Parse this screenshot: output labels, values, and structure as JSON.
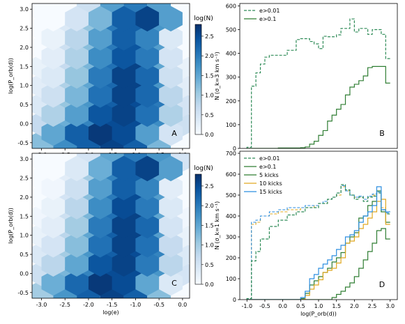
{
  "colors": {
    "cmap": [
      "#f7fbff",
      "#deebf7",
      "#c6dbef",
      "#9ecae1",
      "#6baed6",
      "#4292c6",
      "#2171b5",
      "#08519c",
      "#08306b"
    ],
    "dashed_green": "#2e8b57",
    "solid_green": "#2e7d32",
    "kicks5": "#2e7d32",
    "kicks10": "#e0a820",
    "kicks15": "#2b8ee0"
  },
  "chart_data": [
    {
      "panel": "A",
      "type": "heatmap",
      "xlabel": "",
      "ylabel": "log(P_orb(d))",
      "xlim": [
        -3.2,
        0.15
      ],
      "ylim": [
        -0.65,
        3.15
      ],
      "x_ticks": [
        "-3.0",
        "-2.5",
        "-2.0",
        "-1.5",
        "-1.0",
        "-0.5",
        "0.0"
      ],
      "y_ticks": [
        "-0.5",
        "0.0",
        "0.5",
        "1.0",
        "1.5",
        "2.0",
        "2.5",
        "3.0"
      ],
      "colorbar_label": "log(N)",
      "colorbar_ticks": [
        "0.0",
        "0.5",
        "1.0",
        "1.5",
        "2.0",
        "2.5"
      ],
      "colorbar_range": [
        0,
        2.8
      ],
      "hex_centers_x": [
        -3.0,
        -2.5,
        -2.0,
        -1.5,
        -1.0,
        -0.5,
        0.0
      ],
      "hex_centers_y": [
        -0.5,
        0.0,
        0.5,
        1.0,
        1.5,
        2.0,
        2.5,
        3.0
      ],
      "hex_offset_x": [
        -2.75,
        -2.25,
        -1.75,
        -1.25,
        -0.75,
        -0.25
      ],
      "hex_offset_y": [
        -0.25,
        0.25,
        0.75,
        1.25,
        1.75,
        2.25,
        2.75
      ],
      "values_main": [
        [
          1.2,
          1.8,
          2.3,
          2.6,
          2.3,
          1.3,
          0.0
        ],
        [
          0.7,
          1.4,
          1.9,
          2.5,
          2.5,
          1.8,
          0.6
        ],
        [
          0.4,
          1.1,
          1.7,
          2.3,
          2.5,
          2.0,
          0.5
        ],
        [
          0.3,
          0.9,
          1.5,
          2.2,
          2.6,
          1.7,
          0.3
        ],
        [
          0.2,
          0.7,
          1.3,
          2.1,
          2.6,
          1.5,
          0.2
        ],
        [
          0.0,
          0.6,
          1.2,
          2.0,
          2.4,
          1.6,
          0.0
        ],
        [
          0.0,
          0.4,
          1.1,
          2.0,
          2.3,
          1.7,
          0.0
        ],
        [
          0.0,
          0.0,
          0.6,
          1.6,
          2.0,
          1.6,
          0.0
        ]
      ],
      "values_offset": [
        [
          1.5,
          2.3,
          2.7,
          2.5,
          1.6,
          0.5
        ],
        [
          0.9,
          1.6,
          2.4,
          2.6,
          2.1,
          0.9
        ],
        [
          0.6,
          1.3,
          2.1,
          2.6,
          2.2,
          0.8
        ],
        [
          0.4,
          1.1,
          2.0,
          2.6,
          2.2,
          0.6
        ],
        [
          0.3,
          0.9,
          1.8,
          2.4,
          2.0,
          0.5
        ],
        [
          0.2,
          0.8,
          1.6,
          2.3,
          1.9,
          0.4
        ],
        [
          0.0,
          0.5,
          1.3,
          2.3,
          2.6,
          1.6
        ]
      ]
    },
    {
      "panel": "B",
      "type": "line",
      "xlabel": "",
      "ylabel": "N (σ_k=3 km s⁻¹)",
      "xlim": [
        -1.2,
        3.2
      ],
      "ylim": [
        0,
        610
      ],
      "x_ticks": [],
      "y_ticks": [
        "0",
        "100",
        "200",
        "300",
        "400",
        "500",
        "600"
      ],
      "legend": "top-left",
      "series": [
        {
          "name": "e>0.01",
          "style": "dashed",
          "x": [
            -1.0,
            -0.875,
            -0.75,
            -0.625,
            -0.5,
            -0.375,
            -0.25,
            -0.125,
            0.0,
            0.125,
            0.25,
            0.375,
            0.5,
            0.625,
            0.75,
            0.875,
            1.0,
            1.125,
            1.25,
            1.375,
            1.5,
            1.625,
            1.75,
            1.875,
            2.0,
            2.125,
            2.25,
            2.375,
            2.5,
            2.625,
            2.75,
            2.875,
            3.0
          ],
          "y": [
            5,
            262,
            318,
            355,
            384,
            392,
            392,
            392,
            392,
            413,
            413,
            458,
            462,
            462,
            450,
            440,
            420,
            472,
            470,
            470,
            478,
            505,
            505,
            545,
            490,
            505,
            505,
            480,
            500,
            500,
            480,
            378,
            378
          ]
        },
        {
          "name": "e>0.1",
          "style": "solid",
          "x": [
            -1.0,
            -0.875,
            -0.75,
            -0.625,
            -0.5,
            -0.375,
            -0.25,
            -0.125,
            0.0,
            0.125,
            0.25,
            0.375,
            0.5,
            0.625,
            0.75,
            0.875,
            1.0,
            1.125,
            1.25,
            1.375,
            1.5,
            1.625,
            1.75,
            1.875,
            2.0,
            2.125,
            2.25,
            2.375,
            2.5,
            2.625,
            2.75,
            2.875,
            3.0
          ],
          "y": [
            0,
            0,
            0,
            0,
            0,
            0,
            0,
            2,
            2,
            2,
            2,
            2,
            3,
            6,
            18,
            30,
            55,
            75,
            115,
            140,
            165,
            185,
            225,
            258,
            270,
            285,
            305,
            340,
            345,
            345,
            345,
            275,
            275
          ]
        }
      ]
    },
    {
      "panel": "C",
      "type": "heatmap",
      "xlabel": "log(e)",
      "ylabel": "log(P_orb(d))",
      "xlim": [
        -3.2,
        0.15
      ],
      "ylim": [
        -0.65,
        3.15
      ],
      "x_ticks": [
        "-3.0",
        "-2.5",
        "-2.0",
        "-1.5",
        "-1.0",
        "-0.5",
        "0.0"
      ],
      "y_ticks": [
        "-0.5",
        "0.0",
        "0.5",
        "1.0",
        "1.5",
        "2.0",
        "2.5",
        "3.0"
      ],
      "colorbar_label": "log(N)",
      "colorbar_ticks": [
        "0.0",
        "0.5",
        "1.0",
        "1.5",
        "2.0",
        "2.5"
      ],
      "colorbar_range": [
        0,
        2.8
      ],
      "hex_centers_x": [
        -3.0,
        -2.5,
        -2.0,
        -1.5,
        -1.0,
        -0.5,
        0.0
      ],
      "hex_centers_y": [
        -0.5,
        0.0,
        0.5,
        1.0,
        1.5,
        2.0,
        2.5,
        3.0
      ],
      "hex_offset_x": [
        -2.75,
        -2.25,
        -1.75,
        -1.25,
        -0.75,
        -0.25
      ],
      "hex_offset_y": [
        -0.25,
        0.25,
        0.75,
        1.25,
        1.75,
        2.25,
        2.75
      ],
      "values_main": [
        [
          1.0,
          1.7,
          2.3,
          2.6,
          2.3,
          1.2,
          0.0
        ],
        [
          0.6,
          1.3,
          1.9,
          2.5,
          2.5,
          1.7,
          0.5
        ],
        [
          0.4,
          1.0,
          1.7,
          2.3,
          2.5,
          1.9,
          0.4
        ],
        [
          0.2,
          0.8,
          1.5,
          2.3,
          2.6,
          1.6,
          0.2
        ],
        [
          0.1,
          0.6,
          1.3,
          2.1,
          2.6,
          1.5,
          0.1
        ],
        [
          0.0,
          0.5,
          1.2,
          2.0,
          2.5,
          1.6,
          0.0
        ],
        [
          0.0,
          0.3,
          1.0,
          1.9,
          2.3,
          1.6,
          0.0
        ],
        [
          0.0,
          0.0,
          0.5,
          1.5,
          2.0,
          1.7,
          0.5
        ]
      ],
      "values_offset": [
        [
          1.4,
          2.2,
          2.7,
          2.5,
          1.5,
          0.4
        ],
        [
          0.8,
          1.5,
          2.4,
          2.6,
          2.0,
          0.8
        ],
        [
          0.5,
          1.2,
          2.1,
          2.6,
          2.1,
          0.7
        ],
        [
          0.3,
          1.0,
          2.0,
          2.6,
          2.2,
          0.5
        ],
        [
          0.2,
          0.8,
          1.8,
          2.5,
          2.0,
          0.4
        ],
        [
          0.1,
          0.6,
          1.6,
          2.3,
          1.9,
          0.3
        ],
        [
          0.0,
          0.4,
          1.4,
          2.3,
          2.6,
          1.6
        ]
      ]
    },
    {
      "panel": "D",
      "type": "line",
      "xlabel": "log(P_orb(d))",
      "ylabel": "N (σ_k=1 km s⁻¹)",
      "xlim": [
        -1.2,
        3.2
      ],
      "ylim": [
        0,
        710
      ],
      "x_ticks": [
        "-1.0",
        "-0.5",
        "0.0",
        "0.5",
        "1.0",
        "1.5",
        "2.0",
        "2.5",
        "3.0"
      ],
      "y_ticks": [
        "0",
        "100",
        "200",
        "300",
        "400",
        "500",
        "600",
        "700"
      ],
      "legend": "top-left",
      "series": [
        {
          "name": "e>0.01",
          "style": "dashed",
          "color_key": "dashed_green",
          "x": [
            -1.0,
            -0.875,
            -0.75,
            -0.625,
            -0.5,
            -0.375,
            -0.25,
            -0.125,
            0.0,
            0.125,
            0.25,
            0.375,
            0.5,
            0.625,
            0.75,
            0.875,
            1.0,
            1.125,
            1.25,
            1.375,
            1.5,
            1.625,
            1.75,
            1.875,
            2.0,
            2.125,
            2.25,
            2.375,
            2.5,
            2.625,
            2.75,
            2.875,
            3.0
          ],
          "y": [
            5,
            185,
            230,
            290,
            290,
            350,
            350,
            380,
            380,
            405,
            405,
            420,
            420,
            440,
            440,
            440,
            460,
            460,
            480,
            490,
            510,
            550,
            525,
            500,
            480,
            490,
            470,
            490,
            495,
            510,
            430,
            410,
            410
          ]
        },
        {
          "name": "e>0.1",
          "style": "solid",
          "color_key": "solid_green",
          "x": [
            -1.0,
            -0.875,
            -0.75,
            -0.625,
            -0.5,
            -0.375,
            -0.25,
            -0.125,
            0.0,
            0.125,
            0.25,
            0.375,
            0.5,
            0.625,
            0.75,
            0.875,
            1.0,
            1.125,
            1.25,
            1.375,
            1.5,
            1.625,
            1.75,
            1.875,
            2.0,
            2.125,
            2.25,
            2.375,
            2.5,
            2.625,
            2.75,
            2.875,
            3.0
          ],
          "y": [
            0,
            0,
            0,
            0,
            0,
            0,
            0,
            0,
            0,
            0,
            0,
            0,
            0,
            0,
            0,
            0,
            0,
            0,
            0,
            10,
            25,
            40,
            60,
            80,
            110,
            150,
            190,
            230,
            270,
            330,
            340,
            290,
            290
          ]
        },
        {
          "name": "5 kicks",
          "style": "solid",
          "color_key": "kicks5",
          "x": [
            -1.0,
            -0.875,
            -0.75,
            -0.625,
            -0.5,
            -0.375,
            -0.25,
            -0.125,
            0.0,
            0.125,
            0.25,
            0.375,
            0.5,
            0.625,
            0.75,
            0.875,
            1.0,
            1.125,
            1.25,
            1.375,
            1.5,
            1.625,
            1.75,
            1.875,
            2.0,
            2.125,
            2.25,
            2.375,
            2.5,
            2.625,
            2.75,
            2.875,
            3.0
          ],
          "y": [
            0,
            0,
            0,
            0,
            0,
            0,
            0,
            0,
            0,
            0,
            0,
            0,
            5,
            30,
            70,
            90,
            110,
            130,
            150,
            180,
            200,
            225,
            270,
            300,
            320,
            390,
            400,
            450,
            470,
            520,
            420,
            370,
            370
          ]
        },
        {
          "name": "10 kicks",
          "style": "solid",
          "color_key": "kicks10",
          "x": [
            -1.0,
            -0.875,
            -0.75,
            -0.625,
            -0.5,
            -0.375,
            -0.25,
            -0.125,
            0.0,
            0.125,
            0.25,
            0.375,
            0.5,
            0.625,
            0.75,
            0.875,
            1.0,
            1.125,
            1.25,
            1.375,
            1.5,
            1.625,
            1.75,
            1.875,
            2.0,
            2.125,
            2.25,
            2.375,
            2.5,
            2.625,
            2.75,
            2.875,
            3.0
          ],
          "y": [
            0,
            0,
            0,
            0,
            0,
            0,
            0,
            0,
            0,
            0,
            0,
            0,
            0,
            20,
            50,
            70,
            95,
            130,
            140,
            150,
            175,
            200,
            270,
            280,
            300,
            340,
            360,
            390,
            420,
            470,
            480,
            360,
            360
          ]
        },
        {
          "name": "15 kicks",
          "style": "solid",
          "color_key": "kicks15",
          "x": [
            -1.0,
            -0.875,
            -0.75,
            -0.625,
            -0.5,
            -0.375,
            -0.25,
            -0.125,
            0.0,
            0.125,
            0.25,
            0.375,
            0.5,
            0.625,
            0.75,
            0.875,
            1.0,
            1.125,
            1.25,
            1.375,
            1.5,
            1.625,
            1.75,
            1.875,
            2.0,
            2.125,
            2.25,
            2.375,
            2.5,
            2.625,
            2.75,
            2.875,
            3.0
          ],
          "y": [
            0,
            0,
            0,
            0,
            0,
            0,
            0,
            0,
            0,
            0,
            0,
            0,
            10,
            40,
            100,
            120,
            150,
            170,
            190,
            210,
            240,
            260,
            300,
            310,
            330,
            370,
            400,
            420,
            450,
            540,
            430,
            420,
            420
          ]
        }
      ],
      "dashed_companions": [
        {
          "color_key": "kicks10",
          "y": [
            5,
            360,
            370,
            400,
            400,
            410,
            410,
            420,
            420,
            430,
            430,
            430,
            440,
            440,
            440,
            450,
            460,
            460,
            480,
            490,
            500,
            540,
            520,
            500,
            490,
            490,
            480,
            490,
            500,
            510,
            440,
            420,
            420
          ]
        },
        {
          "color_key": "kicks15",
          "y": [
            5,
            370,
            380,
            400,
            400,
            420,
            420,
            430,
            430,
            440,
            440,
            440,
            440,
            450,
            450,
            450,
            460,
            470,
            480,
            490,
            510,
            545,
            520,
            500,
            490,
            495,
            480,
            495,
            505,
            515,
            420,
            415,
            415
          ]
        }
      ]
    }
  ],
  "panel_letters": [
    "A",
    "B",
    "C",
    "D"
  ]
}
